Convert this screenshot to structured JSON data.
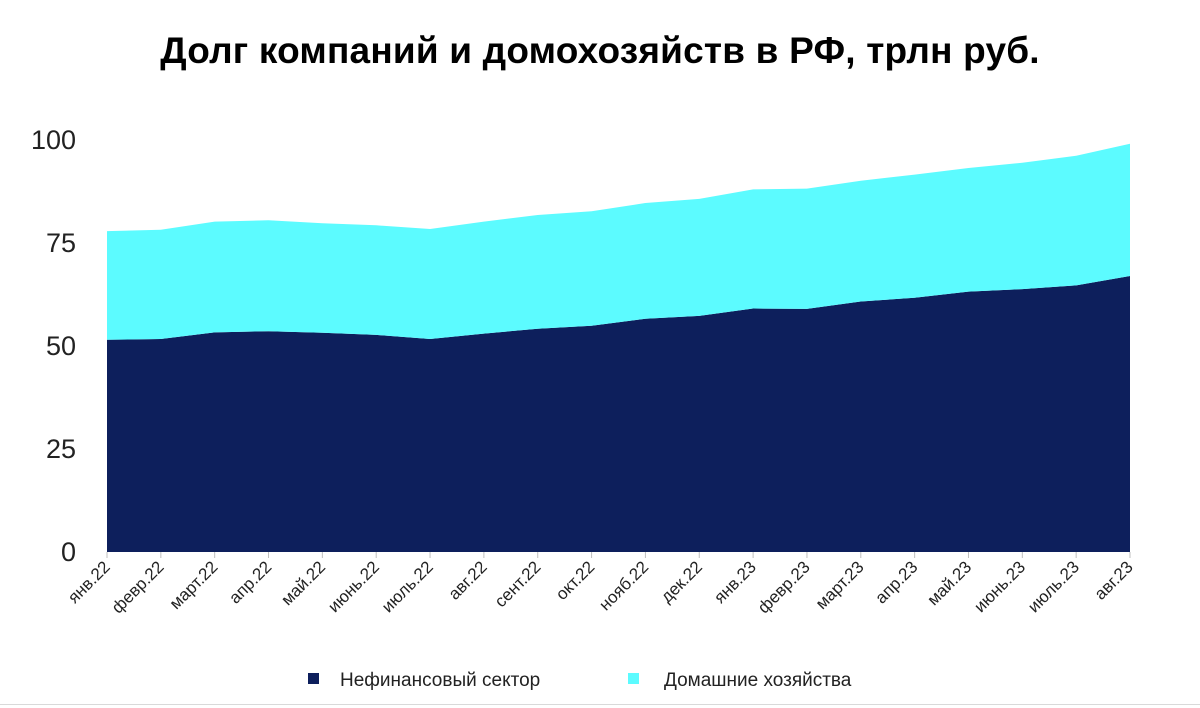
{
  "chart_data": {
    "type": "area",
    "stacked": true,
    "title": "Долг компаний и домохозяйств в РФ, трлн руб.",
    "xlabel": "",
    "ylabel": "",
    "ylim": [
      0,
      100
    ],
    "yticks": [
      0,
      25,
      50,
      75,
      100
    ],
    "grid": false,
    "legend_position": "bottom",
    "categories": [
      "янв.22",
      "февр.22",
      "март.22",
      "апр.22",
      "май.22",
      "июнь.22",
      "июль.22",
      "авг.22",
      "сент.22",
      "окт.22",
      "нояб.22",
      "дек.22",
      "янв.23",
      "февр.23",
      "март.23",
      "апр.23",
      "май.23",
      "июнь.23",
      "июль.23",
      "авг.23"
    ],
    "series": [
      {
        "name": "Нефинансовый сектор",
        "color": "#0d1f5c",
        "values": [
          51.5,
          51.7,
          53.3,
          53.6,
          53.2,
          52.7,
          51.7,
          53.0,
          54.2,
          54.9,
          56.6,
          57.3,
          59.1,
          59.0,
          60.8,
          61.7,
          63.2,
          63.8,
          64.7,
          67.0
        ]
      },
      {
        "name": "Домашние хозяйства",
        "color": "#5cfbff",
        "values": [
          26.4,
          26.5,
          26.9,
          26.9,
          26.6,
          26.6,
          26.7,
          27.2,
          27.6,
          27.8,
          28.1,
          28.4,
          28.9,
          29.2,
          29.3,
          29.9,
          30.0,
          30.7,
          31.5,
          32.1
        ]
      }
    ]
  }
}
